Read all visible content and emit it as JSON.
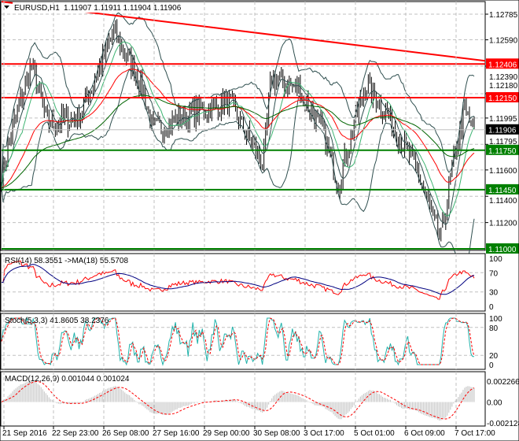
{
  "header": {
    "symbol": "EURUSD,H1",
    "prices": "1.11907 1.11911 1.11904 1.11906",
    "arrow_icon": "triangle-down-icon"
  },
  "price_axis": {
    "ticks": [
      "1.12785",
      "1.12590",
      "1.12390",
      "1.12180",
      "1.11995",
      "1.11795",
      "1.11600",
      "1.11400",
      "1.11200"
    ],
    "levels": [
      {
        "label": "1.12406",
        "color": "#ff0000"
      },
      {
        "label": "1.12150",
        "color": "#ff0000"
      },
      {
        "label": "1.11750",
        "color": "#008000"
      },
      {
        "label": "1.11450",
        "color": "#008000"
      },
      {
        "label": "1.11000",
        "color": "#008000"
      }
    ],
    "current": {
      "label": "1.11906",
      "color": "#000000"
    },
    "trendline_color": "#ff0000"
  },
  "rsi": {
    "label": "RSI(14) 58.3551  ->MA(18) 55.5708",
    "ticks": [
      "100",
      "70",
      "30",
      "0"
    ],
    "line_color": "#ff0000",
    "ma_color": "#000080"
  },
  "stoch": {
    "label": "Stoch(5,3,3) 41.8605 38.2376",
    "ticks": [
      "100",
      "80",
      "20",
      "0"
    ],
    "main_color": "#20b2aa",
    "signal_color": "#ff0000"
  },
  "macd": {
    "label": "MACD(12,26,9) 0.001044 0.001024",
    "ticks": [
      "0.002266",
      "0.00",
      "-0.002128"
    ],
    "hist_color": "#c0c0c0",
    "signal_color": "#ff0000"
  },
  "time_axis": [
    "21 Sep 2016",
    "22 Sep 23:00",
    "26 Sep 08:00",
    "27 Sep 16:00",
    "29 Sep 00:00",
    "30 Sep 08:00",
    "3 Oct 17:00",
    "5 Oct 01:00",
    "6 Oct 09:00",
    "7 Oct 17:00"
  ]
}
